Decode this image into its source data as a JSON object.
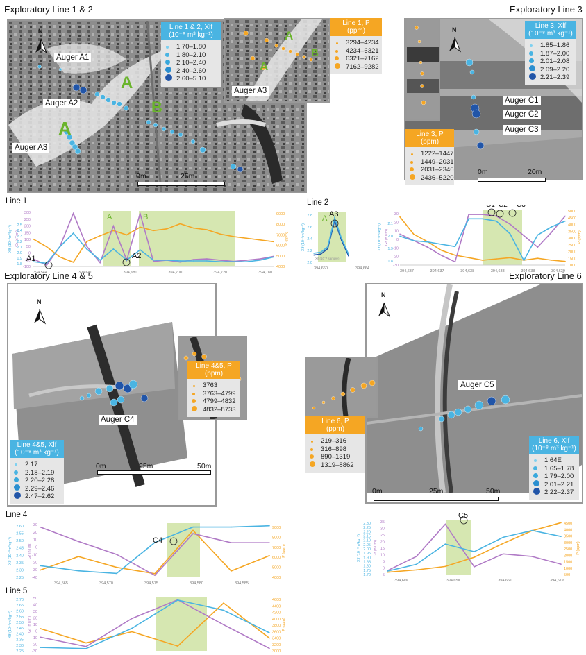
{
  "sections": {
    "s12": "Exploratory Line 1 & 2",
    "s3": "Exploratory Line 3",
    "s45": "Exploratory Line 4 & 5",
    "s6": "Exploratory Line 6"
  },
  "north": "N",
  "scales": {
    "s12": [
      "0m",
      "25m"
    ],
    "s3": [
      "0m",
      "20m"
    ],
    "s45": [
      "0m",
      "25m",
      "50m"
    ],
    "s6": [
      "0m",
      "25m",
      "50m"
    ]
  },
  "map_labels": {
    "augerA1": "Auger A1",
    "augerA2": "Auger A2",
    "augerA3": "Auger A3",
    "augerA3_inset": "Auger A3",
    "augerC1": "Auger C1",
    "augerC2": "Auger C2",
    "augerC3": "Auger C3",
    "augerC4": "Auger C4",
    "augerC5": "Auger C5",
    "A": "A",
    "B": "B"
  },
  "legends": {
    "l12_xlf": {
      "title": "Line 1 & 2, Xlf",
      "unit": "(10⁻⁸ m³ kg⁻¹)",
      "items": [
        "1.70–1.80",
        "1.80–2.10",
        "2.10–2.40",
        "2.40–2.60",
        "2.60–5.10"
      ]
    },
    "l1_p": {
      "title": "Line 1, P",
      "unit": "(ppm)",
      "items": [
        "3294–4234",
        "4234–6321",
        "6321–7162",
        "7162–9282"
      ]
    },
    "l3_xlf": {
      "title": "Line 3, Xlf",
      "unit": "(10⁻⁸ m³ kg⁻¹)",
      "items": [
        "1.85–1.86",
        "1.87–2.00",
        "2.01–2.08",
        "2.09–2.20",
        "2.21–2.39"
      ]
    },
    "l3_p": {
      "title": "Line 3, P",
      "unit": "(ppm)",
      "items": [
        "1222–1447",
        "1449–2031",
        "2031–2346",
        "2436–5220"
      ]
    },
    "l45_p": {
      "title": "Line 4&5, P",
      "unit": "(ppm)",
      "items": [
        "3763",
        "3763–4799",
        "4799–4832",
        "4832–8733"
      ]
    },
    "l45_xlf": {
      "title": "Line 4&5, Xlf",
      "unit": "(10⁻⁸ m³ kg⁻¹)",
      "items": [
        "2.17",
        "2.18–2.19",
        "2.20–2.28",
        "2.29–2.46",
        "2.47–2.62"
      ]
    },
    "l6_p": {
      "title": "Line 6, P",
      "unit": "(ppm)",
      "items": [
        "219–316",
        "316–898",
        "890–1319",
        "1319–8862"
      ]
    },
    "l6_xlf": {
      "title": "Line 6, Xlf",
      "unit": "(10⁻⁸ m³ kg⁻¹)",
      "items": [
        "1.64E",
        "1.65–1.78",
        "1.79–2.00",
        "2.01–2.21",
        "2.22–2.37"
      ]
    }
  },
  "colors": {
    "xlf": "#4ab4e2",
    "xlf_dark": "#2155a8",
    "p": "#f5a623",
    "gr": "#b07ac6",
    "zone": "#cfe3a3"
  },
  "charts": {
    "line1": {
      "label": "Line 1",
      "ylabel_xlf": "Xlf (10⁻⁸m³kg⁻¹)",
      "ylabel_gr": "Gr (nT/m)",
      "ylabel_p": "P (ppm)",
      "xticks": [
        "394,544",
        "394,640",
        "394,680",
        "394,700",
        "394,720",
        "394,780"
      ],
      "gr_ticks": [
        "300",
        "250",
        "200",
        "150",
        "100",
        "50",
        "0",
        "-50",
        "-100"
      ],
      "xlf_ticks": [
        "2.5",
        "2.4",
        "2.3",
        "2.2",
        "2.1",
        "2.0",
        "1.9",
        "1.8"
      ],
      "p_ticks": [
        "9000",
        "8000",
        "7000",
        "6000",
        "5000",
        "4000"
      ],
      "zones": [
        "A",
        "B"
      ],
      "points": [
        "A1",
        "A2"
      ],
      "series": {
        "gr": [
          -60,
          -110,
          40,
          300,
          40,
          -90,
          200,
          -70,
          300,
          -80,
          -70,
          -85,
          -65,
          -60,
          -70,
          -80,
          -70,
          -60,
          -40
        ],
        "xlf": [
          1.86,
          1.84,
          2.05,
          2.22,
          2.02,
          1.88,
          2.02,
          1.88,
          2.01,
          1.88,
          1.88,
          1.87,
          1.87,
          1.87,
          1.86,
          1.86,
          1.86,
          1.88,
          1.92
        ],
        "p": [
          6200,
          5300,
          4100,
          3500,
          5900,
          6600,
          7200,
          6700,
          7600,
          7200,
          7400,
          8000,
          7500,
          7300,
          6800,
          6500,
          6300,
          6100,
          5900
        ]
      }
    },
    "line2": {
      "label": "Line 2",
      "ylabel": "Xlf (10⁻⁸m³kg⁻¹)",
      "xticks": [
        "394,660",
        "394,664"
      ],
      "yticks": [
        "2.8",
        "2.6",
        "2.4",
        "2.2",
        "2.0"
      ],
      "note": "Xlf (10⁻⁸ sample)",
      "zone": "A",
      "point": "A3",
      "series": {
        "xlf_a": [
          2.0,
          2.02,
          2.14,
          2.78,
          2.32,
          1.98
        ],
        "xlf_b": [
          1.96,
          1.98,
          2.1,
          2.72,
          2.28,
          1.94
        ]
      }
    },
    "line3": {
      "ylabel_xlf": "Xlf (10⁻⁸m³kg⁻¹)",
      "ylabel_gr": "Gr (nT/m)",
      "ylabel_p": "P (ppm)",
      "xticks": [
        "394,637",
        "394,637",
        "394,638",
        "394,638",
        "394,638",
        "394,639"
      ],
      "gr_ticks": [
        "30",
        "20",
        "10",
        "0",
        "-10",
        "-20",
        "-30"
      ],
      "xlf_ticks": [
        "2.1",
        "2.0",
        "1.9",
        "1.8"
      ],
      "p_ticks": [
        "5000",
        "4500",
        "4000",
        "3500",
        "3000",
        "2500",
        "2000",
        "1500",
        "1000"
      ],
      "points": [
        "C1",
        "C2",
        "C3"
      ],
      "series": {
        "gr": [
          6,
          -2,
          -10,
          -20,
          -28,
          30,
          30,
          28,
          18,
          4,
          -10,
          8,
          28
        ],
        "xlf": [
          1.97,
          1.93,
          1.92,
          1.9,
          1.88,
          2.12,
          2.12,
          2.1,
          1.99,
          1.76,
          1.98,
          2.05,
          2.1
        ],
        "p": [
          4800,
          3400,
          2800,
          2100,
          1700,
          1500,
          1300,
          1400,
          1500,
          1300,
          1450,
          1300,
          1200
        ]
      }
    },
    "line4": {
      "label": "Line 4",
      "ylabel_xlf": "Xlf (10⁻⁸m³kg⁻¹)",
      "ylabel_gr": "Gr (nT/m)",
      "ylabel_p": "P (ppm)",
      "xticks": [
        "394,565",
        "394,570",
        "394,575",
        "394,580",
        "394,585"
      ],
      "gr_ticks": [
        "30",
        "20",
        "10",
        "0",
        "-10",
        "-20",
        "-30",
        "-40"
      ],
      "xlf_ticks": [
        "2.60",
        "2.55",
        "2.50",
        "2.45",
        "2.40",
        "2.35",
        "2.30",
        "2.25"
      ],
      "p_ticks": [
        "9000",
        "8000",
        "7000",
        "6000",
        "5000",
        "4000"
      ],
      "point": "C4",
      "series": {
        "gr": [
          32,
          10,
          -10,
          -42,
          22,
          8,
          8
        ],
        "xlf": [
          2.33,
          2.29,
          2.27,
          2.51,
          2.63,
          2.63,
          2.64
        ],
        "p": [
          4300,
          5800,
          4600,
          3900,
          8700,
          4200,
          5900
        ]
      }
    },
    "line5": {
      "label": "Line 5",
      "ylabel_xlf": "Xlf (10⁻⁸m³kg⁻¹)",
      "ylabel_gr": "Gr (nT/m)",
      "ylabel_p": "P (ppm)",
      "gr_ticks": [
        "50",
        "40",
        "30",
        "20",
        "10",
        "0",
        "-10",
        "-20",
        "-30"
      ],
      "xlf_ticks": [
        "2.70",
        "2.65",
        "2.60",
        "2.55",
        "2.50",
        "2.45",
        "2.40",
        "2.35",
        "2.30",
        "2.25"
      ],
      "p_ticks": [
        "4600",
        "4400",
        "4200",
        "4000",
        "3800",
        "3600",
        "3400",
        "3200",
        "3000"
      ],
      "series": {
        "gr": [
          -10,
          -25,
          20,
          50,
          10,
          -28
        ],
        "xlf": [
          2.27,
          2.26,
          2.44,
          2.69,
          2.6,
          2.4
        ],
        "p": [
          3700,
          3250,
          3600,
          3150,
          4500,
          3400
        ]
      }
    },
    "line6": {
      "ylabel_xlf": "Xlf (10⁻⁸m³kg⁻¹)",
      "ylabel_gr": "Gr (nT/m)",
      "ylabel_p": "P (ppm)",
      "xticks": [
        "394,6##",
        "394,65#",
        "394,661",
        "394,67#"
      ],
      "gr_ticks": [
        "35",
        "30",
        "25",
        "20",
        "15",
        "10",
        "5",
        "0",
        "-5"
      ],
      "xlf_ticks": [
        "2.30",
        "2.25",
        "2.20",
        "2.15",
        "2.10",
        "2.05",
        "2.00",
        "1.95",
        "1.90",
        "1.85",
        "1.80",
        "1.75",
        "1.70"
      ],
      "p_ticks": [
        "4500",
        "4000",
        "3500",
        "3000",
        "2500",
        "2000",
        "1500",
        "1000",
        "500"
      ],
      "point": "C5",
      "series": {
        "gr": [
          -3,
          8,
          33,
          0,
          10,
          8,
          2
        ],
        "xlf": [
          1.72,
          1.8,
          2.04,
          1.95,
          2.12,
          2.2,
          2.13
        ],
        "p": [
          200,
          400,
          700,
          1500,
          2700,
          3800,
          4500
        ]
      }
    }
  }
}
